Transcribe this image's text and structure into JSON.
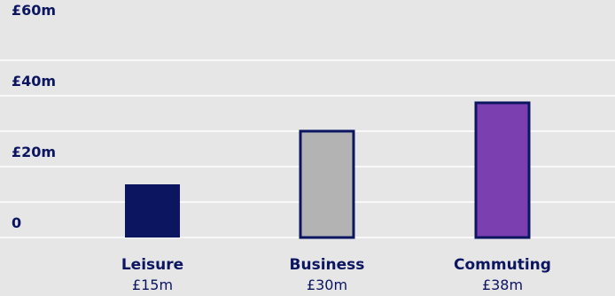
{
  "chart_data": {
    "type": "bar",
    "categories": [
      "Leisure",
      "Business",
      "Commuting"
    ],
    "values": [
      15,
      30,
      38
    ],
    "value_labels": [
      "£15m",
      "£30m",
      "£38m"
    ],
    "ylim": [
      0,
      60
    ],
    "yticks": [
      {
        "value": 0,
        "label": "0"
      },
      {
        "value": 20,
        "label": "£20m"
      },
      {
        "value": 40,
        "label": "£40m"
      },
      {
        "value": 60,
        "label": "£60m"
      }
    ],
    "gridlines": [
      0,
      10,
      20,
      30,
      40,
      50
    ],
    "grid": true,
    "colors": {
      "background": "#e6e6e6",
      "gridline": "#ffffff",
      "text": "#0b1560",
      "bar_outline": "#0b1560",
      "bar_fills": [
        "#0b1560",
        "#b3b3b3",
        "#7b3fb0"
      ]
    }
  }
}
